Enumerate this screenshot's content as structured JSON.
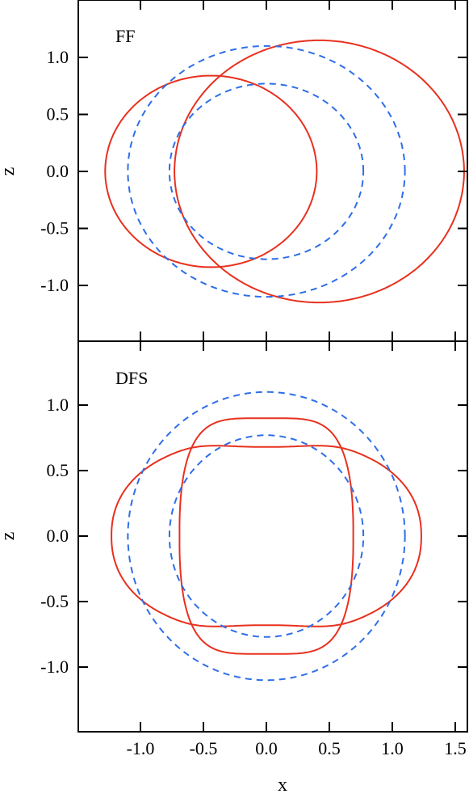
{
  "chart_data": [
    {
      "type": "line",
      "panel_label": "FF",
      "xlabel": "",
      "ylabel": "z",
      "xlim": [
        -1.5,
        1.55
      ],
      "ylim": [
        -1.5,
        1.48
      ],
      "xticks": [
        -1.0,
        -0.5,
        0.0,
        0.5,
        1.0,
        1.5
      ],
      "yticks": [
        1.0,
        0.5,
        0.0,
        -0.5,
        -1.0
      ],
      "ytick_labels": [
        "1.0",
        "0.5",
        "0.0",
        "-0.5",
        "-1.0"
      ],
      "series": [
        {
          "style": "solid",
          "color": "#e8301e",
          "curves": [
            {
              "shape": "circle",
              "center": [
                -0.44,
                0.0
              ],
              "radius": 0.84
            },
            {
              "shape": "circle",
              "center": [
                0.42,
                0.0
              ],
              "radius": 1.15
            }
          ]
        },
        {
          "style": "dashed",
          "color": "#2e6ee8",
          "curves": [
            {
              "shape": "circle",
              "center": [
                0.0,
                0.0
              ],
              "radius": 1.1
            },
            {
              "shape": "ellipse",
              "center": [
                0.0,
                0.0
              ],
              "rx": 0.77,
              "rz": 0.77,
              "note_x_extent": [
                -0.77,
                0.77
              ]
            }
          ]
        }
      ]
    },
    {
      "type": "line",
      "panel_label": "DFS",
      "xlabel": "x",
      "ylabel": "z",
      "xlim": [
        -1.5,
        1.55
      ],
      "ylim": [
        -1.5,
        1.48
      ],
      "xticks": [
        -1.0,
        -0.5,
        0.0,
        0.5,
        1.0,
        1.5
      ],
      "xtick_labels": [
        "-1.0",
        "-0.5",
        "0.0",
        "0.5",
        "1.0",
        "1.5"
      ],
      "yticks": [
        1.0,
        0.5,
        0.0,
        -0.5,
        -1.0
      ],
      "ytick_labels": [
        "1.0",
        "0.5",
        "0.0",
        "-0.5",
        "-1.0"
      ],
      "series": [
        {
          "style": "solid",
          "color": "#e8301e",
          "curves": [
            {
              "shape": "peanut-horizontal",
              "x_extent": [
                -1.23,
                1.23
              ],
              "z_max": 0.74,
              "z_at_center": 0.68
            },
            {
              "shape": "rounded-vertical",
              "x_extent": [
                -0.69,
                0.69
              ],
              "z_extent": [
                -0.9,
                0.9
              ]
            }
          ]
        },
        {
          "style": "dashed",
          "color": "#2e6ee8",
          "curves": [
            {
              "shape": "circle",
              "center": [
                0.0,
                0.0
              ],
              "radius": 1.1
            },
            {
              "shape": "circle",
              "center": [
                0.0,
                0.0
              ],
              "radius": 0.77
            }
          ]
        }
      ]
    }
  ]
}
